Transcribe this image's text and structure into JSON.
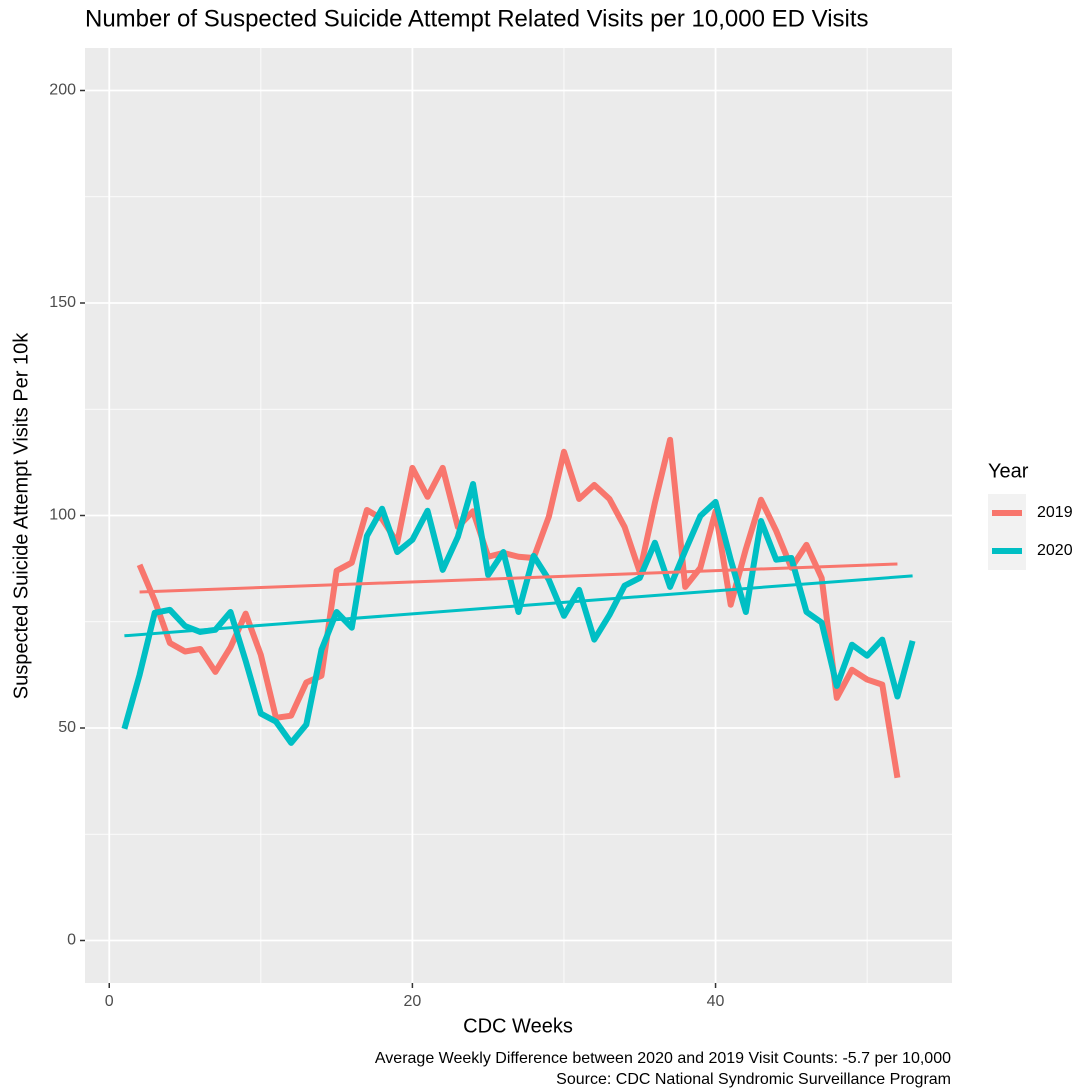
{
  "chart_data": {
    "type": "line",
    "title": "Number of Suspected Suicide Attempt Related Visits per 10,000 ED Visits",
    "x_label": "CDC Weeks",
    "y_label": "Suspected Suicide Attempt Visits Per 10k",
    "legend_title": "Year",
    "legend_position": "right",
    "annotations": [
      "Average Weekly Difference between 2020 and 2019 Visit Counts: -5.7 per 10,000",
      "Source: CDC National Syndromic Surveillance Program"
    ],
    "xlim": [
      -1.6,
      55.6
    ],
    "xticks": [
      0,
      20,
      40
    ],
    "ylim": [
      -10,
      210
    ],
    "yticks": [
      0,
      50,
      100,
      150,
      200
    ],
    "grid": true,
    "series": [
      {
        "name": "2019",
        "color": "#F8766D",
        "x": [
          2,
          3,
          4,
          5,
          6,
          7,
          8,
          9,
          10,
          11,
          12,
          13,
          14,
          15,
          16,
          17,
          18,
          19,
          20,
          21,
          22,
          23,
          24,
          25,
          26,
          27,
          28,
          29,
          30,
          31,
          32,
          33,
          34,
          35,
          36,
          37,
          38,
          39,
          40,
          41,
          42,
          43,
          44,
          45,
          46,
          47,
          48,
          49,
          50,
          51,
          52
        ],
        "values": [
          88.4,
          80,
          70,
          68,
          68.6,
          63.2,
          69,
          76.9,
          67.2,
          52.4,
          52.9,
          60.7,
          62.3,
          87,
          88.9,
          101.3,
          99.2,
          93.6,
          111.2,
          104.4,
          111.2,
          97.3,
          101,
          90.3,
          91.2,
          90.3,
          90,
          99.7,
          115,
          103.9,
          107.2,
          103.9,
          97.3,
          86.7,
          103,
          117.8,
          83.2,
          87.7,
          101,
          79,
          92.1,
          103.7,
          96.4,
          87.7,
          93.1,
          85.3,
          57.1,
          63.7,
          61.4,
          60.2,
          38.3
        ],
        "trend": {
          "x": [
            2,
            52
          ],
          "values": [
            82,
            88.6
          ]
        }
      },
      {
        "name": "2020",
        "color": "#00BFC4",
        "x": [
          1,
          2,
          3,
          4,
          5,
          6,
          7,
          8,
          9,
          10,
          11,
          12,
          13,
          14,
          15,
          16,
          17,
          18,
          19,
          20,
          21,
          22,
          23,
          24,
          25,
          26,
          27,
          28,
          29,
          30,
          31,
          32,
          33,
          34,
          35,
          36,
          37,
          38,
          39,
          40,
          41,
          42,
          43,
          44,
          45,
          46,
          47,
          48,
          49,
          50,
          51,
          52,
          53
        ],
        "values": [
          49.8,
          62.5,
          77.1,
          77.8,
          74,
          72.6,
          73.1,
          77.3,
          65.8,
          53.4,
          51.5,
          46.5,
          50.8,
          68.4,
          77.3,
          73.6,
          95.2,
          101.6,
          91.4,
          94.3,
          101.1,
          87.2,
          95,
          107.4,
          86,
          91.4,
          77.3,
          90.5,
          84.9,
          76.4,
          82.5,
          70.8,
          76.6,
          83.5,
          85.3,
          93.6,
          83.2,
          91.7,
          99.9,
          103.2,
          89.6,
          77.3,
          98.7,
          89.6,
          90,
          77.3,
          74.8,
          59.9,
          69.6,
          67,
          70.8,
          57.4,
          70.5
        ],
        "trend": {
          "x": [
            1,
            53
          ],
          "values": [
            71.7,
            85.8
          ]
        }
      }
    ]
  }
}
